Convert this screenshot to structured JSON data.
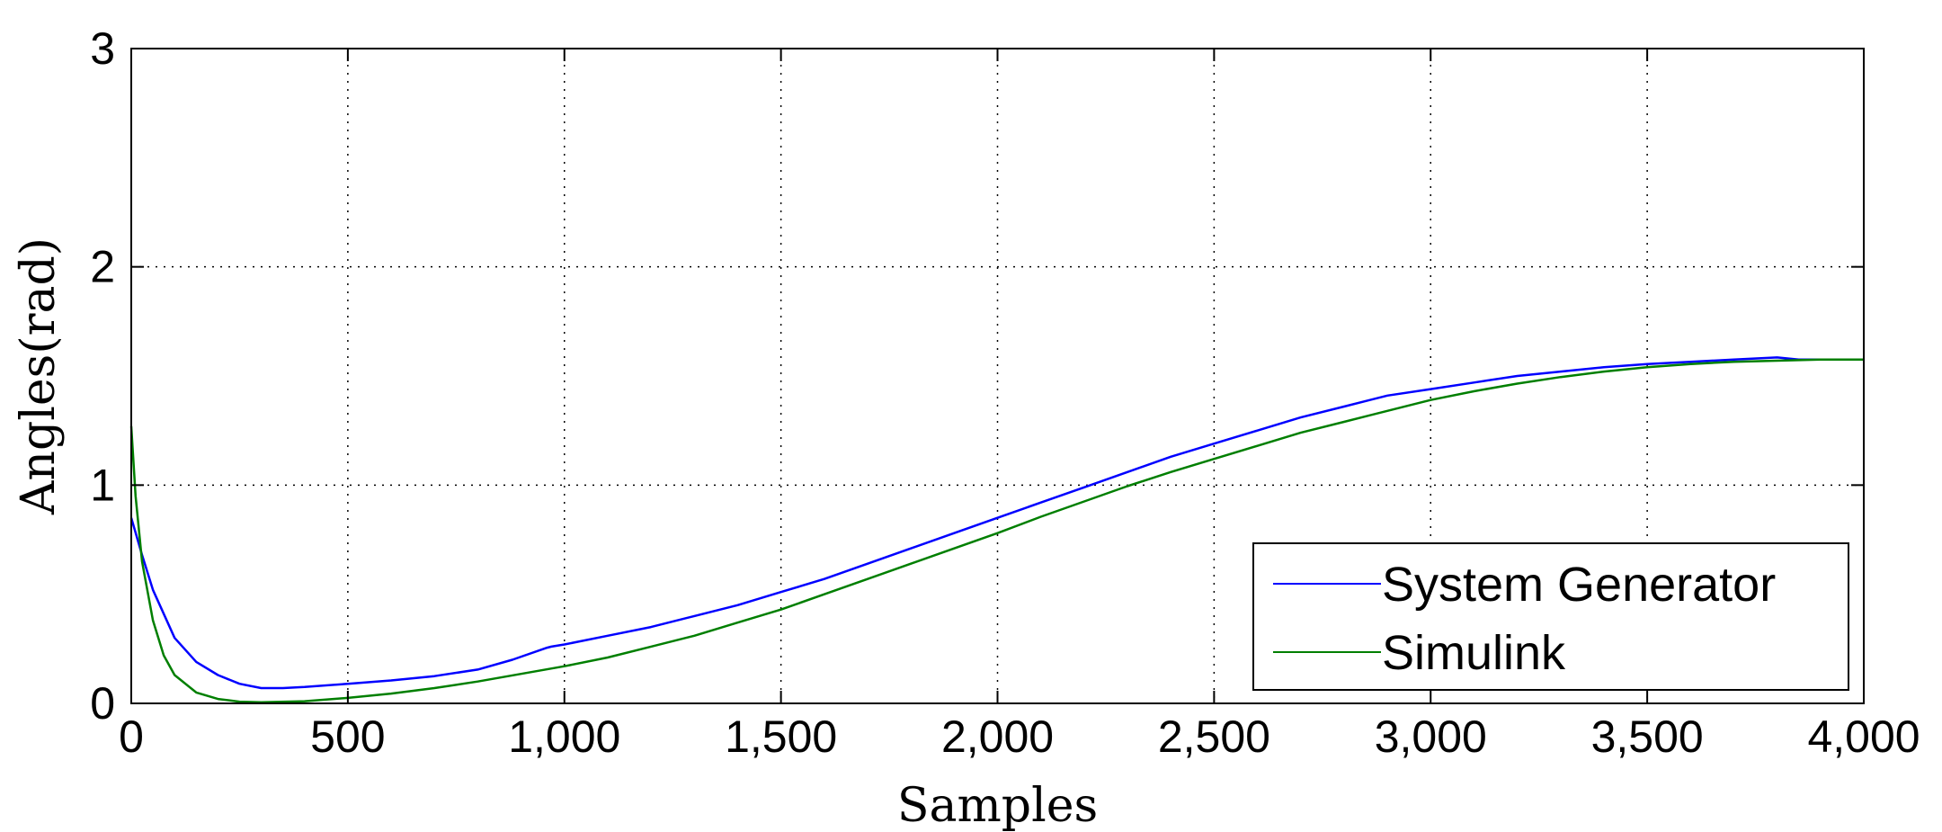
{
  "chart_data": {
    "type": "line",
    "xlabel": "Samples",
    "ylabel": "Angles(rad)",
    "xlim": [
      0,
      4000
    ],
    "ylim": [
      0,
      3
    ],
    "x_ticks": [
      0,
      500,
      1000,
      1500,
      2000,
      2500,
      3000,
      3500,
      4000
    ],
    "x_tick_labels": [
      "0",
      "500",
      "1,000",
      "1,500",
      "2,000",
      "2,500",
      "3,000",
      "3,500",
      "4,000"
    ],
    "y_ticks": [
      0,
      1,
      2,
      3
    ],
    "y_tick_labels": [
      "0",
      "1",
      "2",
      "3"
    ],
    "grid": true,
    "legend_position": "bottom-right",
    "series": [
      {
        "name": "System Generator",
        "color": "#0000ff",
        "x": [
          0,
          25,
          50,
          100,
          150,
          200,
          250,
          300,
          350,
          400,
          500,
          600,
          700,
          800,
          880,
          960,
          970,
          1000,
          1100,
          1200,
          1300,
          1400,
          1500,
          1600,
          1700,
          1800,
          1900,
          2000,
          2100,
          2200,
          2300,
          2400,
          2500,
          2600,
          2700,
          2800,
          2900,
          3000,
          3100,
          3200,
          3300,
          3400,
          3500,
          3600,
          3700,
          3800,
          3850,
          3900,
          4000
        ],
        "y": [
          0.85,
          0.68,
          0.52,
          0.3,
          0.19,
          0.13,
          0.09,
          0.07,
          0.07,
          0.075,
          0.09,
          0.105,
          0.125,
          0.155,
          0.2,
          0.255,
          0.26,
          0.27,
          0.31,
          0.35,
          0.4,
          0.45,
          0.51,
          0.57,
          0.64,
          0.71,
          0.78,
          0.85,
          0.92,
          0.99,
          1.06,
          1.13,
          1.19,
          1.25,
          1.31,
          1.36,
          1.41,
          1.44,
          1.47,
          1.5,
          1.52,
          1.54,
          1.555,
          1.565,
          1.575,
          1.585,
          1.575,
          1.575,
          1.575
        ]
      },
      {
        "name": "Simulink",
        "color": "#007f00",
        "x": [
          0,
          10,
          25,
          50,
          75,
          100,
          150,
          200,
          250,
          300,
          400,
          500,
          600,
          700,
          800,
          900,
          1000,
          1100,
          1200,
          1300,
          1400,
          1500,
          1600,
          1700,
          1800,
          1900,
          2000,
          2100,
          2200,
          2300,
          2400,
          2500,
          2600,
          2700,
          2800,
          2900,
          3000,
          3100,
          3200,
          3300,
          3400,
          3500,
          3600,
          3700,
          3800,
          3900,
          4000
        ],
        "y": [
          1.27,
          0.95,
          0.65,
          0.38,
          0.22,
          0.13,
          0.05,
          0.02,
          0.008,
          0.005,
          0.01,
          0.025,
          0.045,
          0.07,
          0.1,
          0.135,
          0.17,
          0.21,
          0.26,
          0.31,
          0.37,
          0.43,
          0.5,
          0.57,
          0.64,
          0.71,
          0.78,
          0.855,
          0.925,
          0.995,
          1.06,
          1.12,
          1.18,
          1.24,
          1.29,
          1.34,
          1.39,
          1.43,
          1.465,
          1.495,
          1.52,
          1.54,
          1.555,
          1.565,
          1.57,
          1.575,
          1.575
        ]
      }
    ]
  }
}
